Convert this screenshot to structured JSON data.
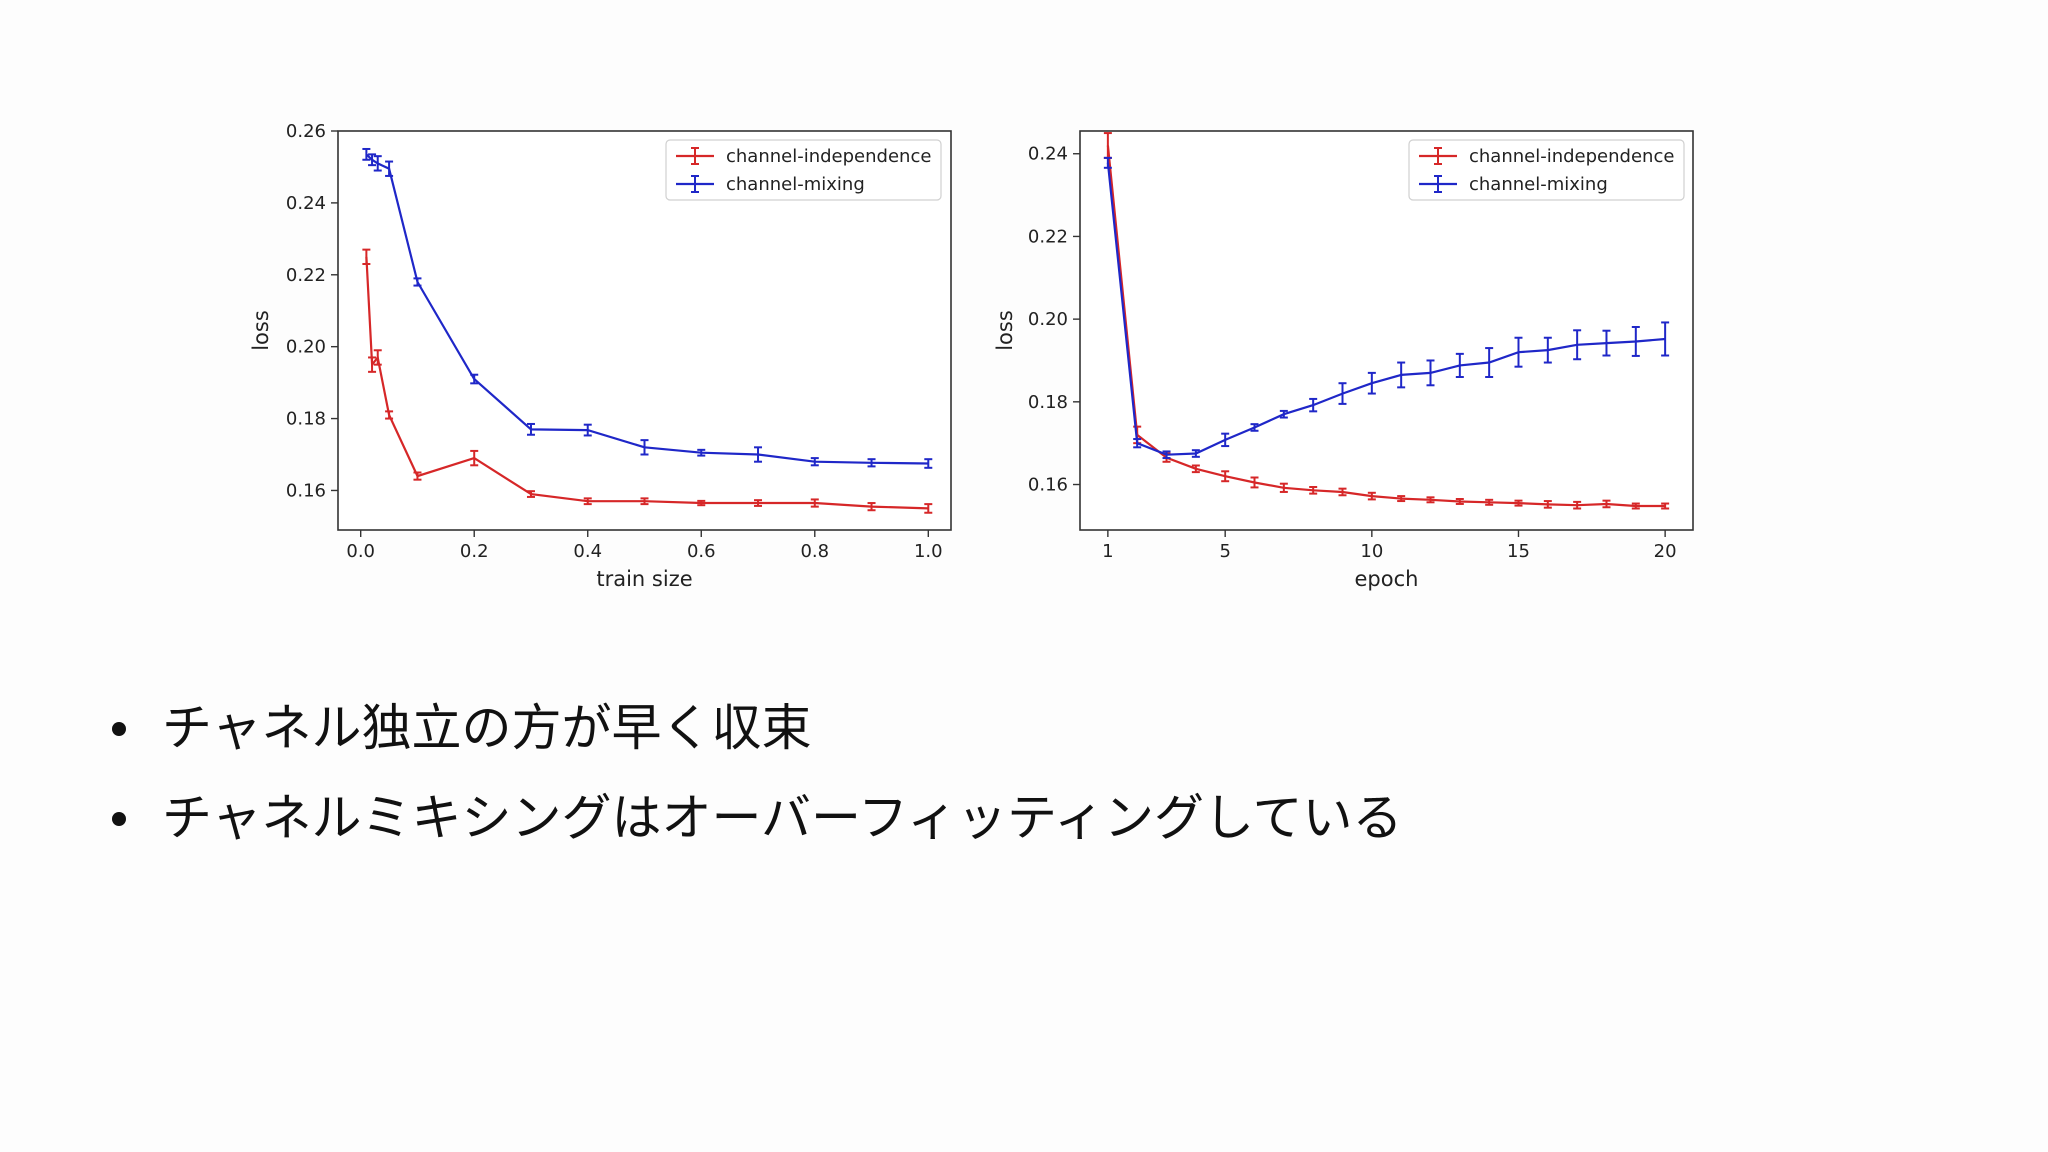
{
  "bullets": [
    "チャネル独立の方が早く収束",
    "チャネルミキシングはオーバーフィッティングしている"
  ],
  "chart_data": [
    {
      "type": "line",
      "xlabel": "train size",
      "ylabel": "loss",
      "xlim": [
        -0.04,
        1.04
      ],
      "ylim": [
        0.149,
        0.26
      ],
      "xticks": [
        "0.0",
        "0.2",
        "0.4",
        "0.6",
        "0.8",
        "1.0"
      ],
      "yticks": [
        "0.16",
        "0.18",
        "0.20",
        "0.22",
        "0.24",
        "0.26"
      ],
      "legend_position": "top-right",
      "error_bars": true,
      "series": [
        {
          "name": "channel-independence",
          "color": "#d62728",
          "x": [
            0.01,
            0.02,
            0.03,
            0.05,
            0.1,
            0.2,
            0.3,
            0.4,
            0.5,
            0.6,
            0.7,
            0.8,
            0.9,
            1.0
          ],
          "y": [
            0.225,
            0.195,
            0.197,
            0.181,
            0.164,
            0.169,
            0.159,
            0.157,
            0.157,
            0.1565,
            0.1565,
            0.1565,
            0.1555,
            0.155
          ],
          "err": [
            0.002,
            0.002,
            0.002,
            0.001,
            0.001,
            0.002,
            0.0008,
            0.0008,
            0.0008,
            0.0006,
            0.0008,
            0.001,
            0.001,
            0.0012
          ]
        },
        {
          "name": "channel-mixing",
          "color": "#1f27c8",
          "x": [
            0.01,
            0.02,
            0.03,
            0.05,
            0.1,
            0.2,
            0.3,
            0.4,
            0.5,
            0.6,
            0.7,
            0.8,
            0.9,
            1.0
          ],
          "y": [
            0.2535,
            0.252,
            0.251,
            0.2495,
            0.218,
            0.191,
            0.177,
            0.1768,
            0.172,
            0.1705,
            0.17,
            0.168,
            0.1677,
            0.1675
          ],
          "err": [
            0.0015,
            0.0015,
            0.002,
            0.002,
            0.001,
            0.0012,
            0.0015,
            0.0015,
            0.002,
            0.0008,
            0.002,
            0.001,
            0.001,
            0.0012
          ]
        }
      ]
    },
    {
      "type": "line",
      "xlabel": "epoch",
      "ylabel": "loss",
      "xlim": [
        0.05,
        20.95
      ],
      "ylim": [
        0.149,
        0.2455
      ],
      "xticks": [
        "1",
        "5",
        "10",
        "15",
        "20"
      ],
      "yticks": [
        "0.16",
        "0.18",
        "0.20",
        "0.22",
        "0.24"
      ],
      "legend_position": "top-right",
      "error_bars": true,
      "series": [
        {
          "name": "channel-independence",
          "color": "#d62728",
          "x": [
            1,
            2,
            3,
            4,
            5,
            6,
            7,
            8,
            9,
            10,
            11,
            12,
            13,
            14,
            15,
            16,
            17,
            18,
            19,
            20
          ],
          "y": [
            0.242,
            0.172,
            0.1665,
            0.1638,
            0.162,
            0.1605,
            0.1592,
            0.1586,
            0.1582,
            0.1572,
            0.1566,
            0.1563,
            0.1559,
            0.1557,
            0.1555,
            0.1552,
            0.155,
            0.1553,
            0.1548,
            0.1548
          ],
          "err": [
            0.003,
            0.002,
            0.001,
            0.0008,
            0.0012,
            0.0012,
            0.001,
            0.0008,
            0.0008,
            0.0008,
            0.0006,
            0.0006,
            0.0006,
            0.0006,
            0.0006,
            0.0008,
            0.0008,
            0.0008,
            0.0006,
            0.0006
          ]
        },
        {
          "name": "channel-mixing",
          "color": "#1f27c8",
          "x": [
            1,
            2,
            3,
            4,
            5,
            6,
            7,
            8,
            9,
            10,
            11,
            12,
            13,
            14,
            15,
            16,
            17,
            18,
            19,
            20
          ],
          "y": [
            0.2378,
            0.17,
            0.1672,
            0.1675,
            0.1708,
            0.1738,
            0.177,
            0.1792,
            0.182,
            0.1845,
            0.1865,
            0.187,
            0.1888,
            0.1895,
            0.192,
            0.1925,
            0.1938,
            0.1942,
            0.1946,
            0.1952
          ],
          "err": [
            0.0012,
            0.001,
            0.0008,
            0.0008,
            0.0015,
            0.0008,
            0.0008,
            0.0015,
            0.0025,
            0.0025,
            0.003,
            0.003,
            0.0028,
            0.0035,
            0.0035,
            0.003,
            0.0035,
            0.003,
            0.0035,
            0.004
          ]
        }
      ]
    }
  ]
}
